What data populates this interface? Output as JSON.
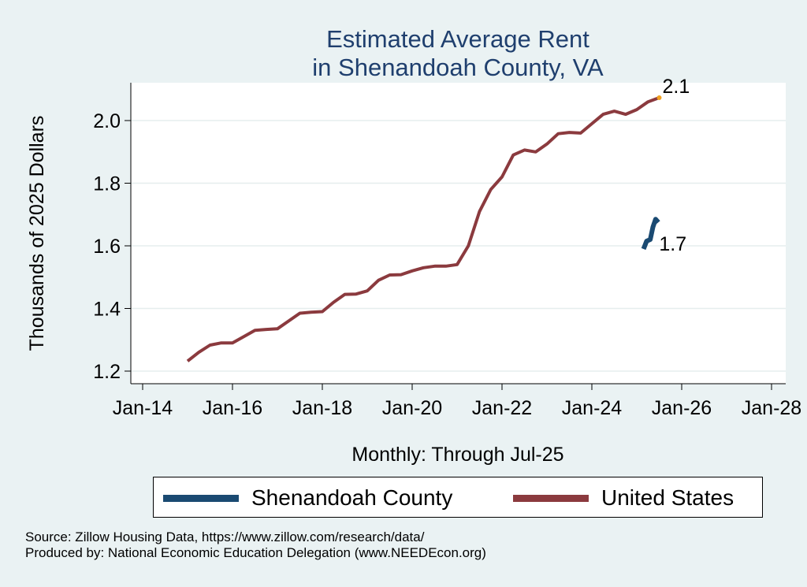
{
  "chart_data": {
    "type": "line",
    "title": [
      "Estimated Average Rent",
      "in Shenandoah County, VA"
    ],
    "xlabel": "Monthly: Through Jul-25",
    "ylabel": "Thousands of 2025 Dollars",
    "x_ticks": [
      "Jan-14",
      "Jan-16",
      "Jan-18",
      "Jan-20",
      "Jan-22",
      "Jan-24",
      "Jan-26",
      "Jan-28"
    ],
    "xlim": [
      2014.0,
      2028.0
    ],
    "y_ticks": [
      "1.2",
      "1.4",
      "1.6",
      "1.8",
      "2.0"
    ],
    "ylim": [
      1.17,
      2.12
    ],
    "grid": true,
    "legend_position": "bottom",
    "series": [
      {
        "name": "Shenandoah County",
        "color": "#1a4a72",
        "end_label": "1.7",
        "x": [
          2025.15,
          2025.22,
          2025.3,
          2025.36,
          2025.42,
          2025.48
        ],
        "y": [
          1.59,
          1.615,
          1.62,
          1.66,
          1.685,
          1.675
        ]
      },
      {
        "name": "United States",
        "color": "#8b3a3e",
        "end_label": "2.1",
        "x": [
          2015.0,
          2015.25,
          2015.5,
          2015.75,
          2016.0,
          2016.25,
          2016.5,
          2016.75,
          2017.0,
          2017.25,
          2017.5,
          2017.75,
          2018.0,
          2018.25,
          2018.5,
          2018.75,
          2019.0,
          2019.25,
          2019.5,
          2019.75,
          2020.0,
          2020.25,
          2020.5,
          2020.75,
          2021.0,
          2021.25,
          2021.5,
          2021.75,
          2022.0,
          2022.25,
          2022.5,
          2022.75,
          2023.0,
          2023.25,
          2023.5,
          2023.75,
          2024.0,
          2024.25,
          2024.5,
          2024.75,
          2025.0,
          2025.25,
          2025.5
        ],
        "y": [
          1.232,
          1.26,
          1.283,
          1.29,
          1.29,
          1.31,
          1.33,
          1.333,
          1.335,
          1.36,
          1.385,
          1.388,
          1.39,
          1.42,
          1.445,
          1.446,
          1.456,
          1.49,
          1.507,
          1.508,
          1.52,
          1.53,
          1.535,
          1.535,
          1.54,
          1.6,
          1.71,
          1.78,
          1.82,
          1.89,
          1.906,
          1.9,
          1.925,
          1.958,
          1.962,
          1.96,
          1.99,
          2.02,
          2.03,
          2.02,
          2.035,
          2.06,
          2.073
        ]
      }
    ],
    "end_marker_color": "#f0a020"
  },
  "footer": {
    "source": "Source: Zillow Housing Data, https://www.zillow.com/research/data/",
    "producer": "Produced by: National Economic Education Delegation (www.NEEDEcon.org)"
  }
}
